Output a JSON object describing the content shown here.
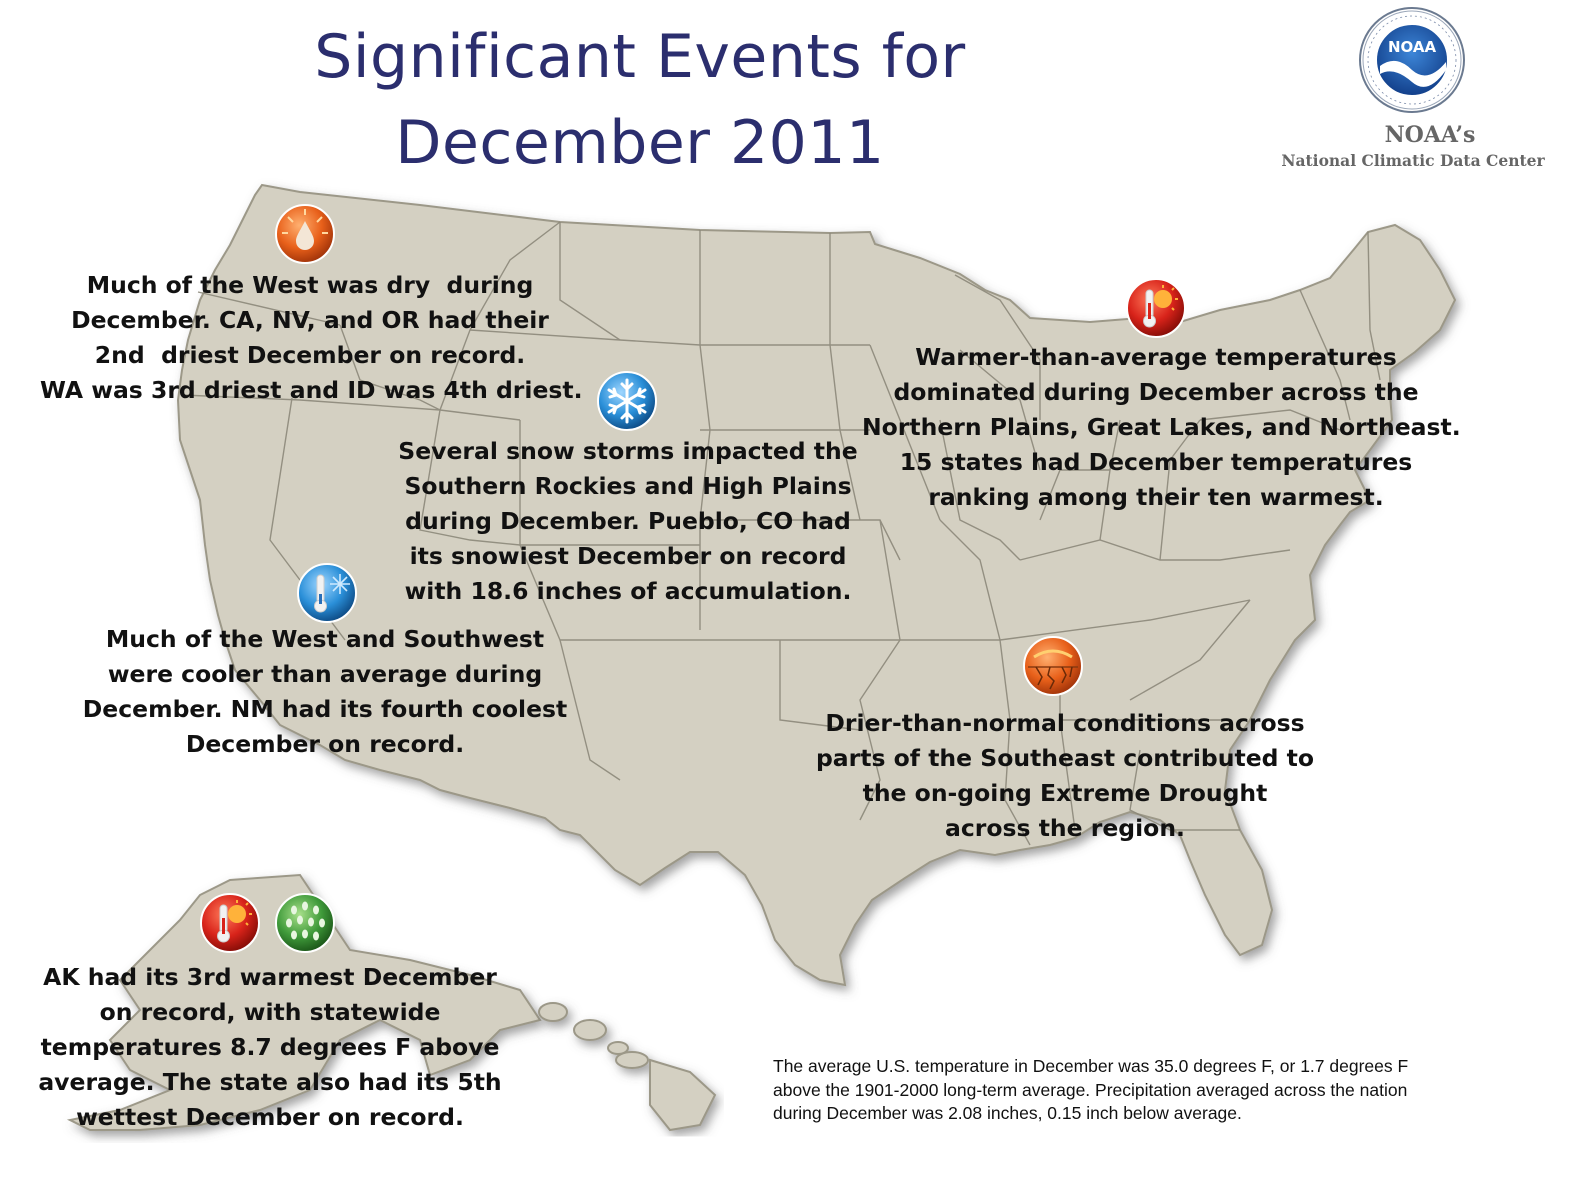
{
  "title": {
    "line1": "Significant Events for",
    "line2": "December 2011"
  },
  "logo": {
    "label": "NOAA",
    "ring_text": "NATIONAL OCEANIC AND ATMOSPHERIC ADMINISTRATION · U.S. DEPARTMENT OF COMMERCE",
    "name": "NOAA’s",
    "center": "National Climatic Data Center"
  },
  "callouts": {
    "west_dry": {
      "icon": "dry-drop-icon",
      "lines": [
        "Much of the West was dry  during",
        "December. CA, NV, and OR had their",
        "2nd  driest December on record.",
        "WA was 3rd driest and ID was 4th driest."
      ]
    },
    "snow": {
      "icon": "snowflake-icon",
      "lines": [
        "Several snow storms impacted the",
        "Southern Rockies and High Plains",
        "during December. Pueblo, CO had",
        "its snowiest December on record",
        "with 18.6 inches of accumulation."
      ]
    },
    "warm_northeast": {
      "icon": "warm-thermometer-icon",
      "lines": [
        "Warmer-than-average temperatures",
        "dominated during December across the",
        "Northern Plains, Great Lakes, and Northeast.",
        "15 states had December temperatures",
        "ranking among their ten warmest."
      ]
    },
    "cool_west": {
      "icon": "cool-thermometer-icon",
      "lines": [
        "Much of the West and Southwest",
        "were cooler than average during",
        "December. NM had its fourth coolest",
        "December on record."
      ]
    },
    "drought_southeast": {
      "icon": "drought-icon",
      "lines": [
        "Drier-than-normal conditions across",
        "parts of the Southeast contributed to",
        "the on-going Extreme Drought",
        "across the region."
      ]
    },
    "alaska": {
      "icons": [
        "warm-thermometer-icon",
        "rain-drops-icon"
      ],
      "lines": [
        "AK had its 3rd warmest December",
        "on record, with statewide",
        "temperatures 8.7 degrees F above",
        "average. The state also had its 5th",
        "wettest December on record."
      ]
    }
  },
  "summary_note": {
    "lines": [
      "The average U.S. temperature in December was 35.0 degrees F, or 1.7 degrees F",
      "above the 1901-2000 long-term average. Precipitation averaged across the nation",
      "during December was 2.08 inches, 0.15 inch below average."
    ]
  },
  "colors": {
    "title": "#2b2e6e",
    "land": "#d4d0c2",
    "land_border": "#9c9888",
    "state_lines": "#8c887a",
    "noaa_blue": "#1a4f9c",
    "warm_icon": "#d8231a",
    "dry_icon": "#e8601a",
    "cool_icon": "#2a8fd8",
    "snow_icon": "#3a9de0",
    "wet_icon": "#3f9a3a"
  }
}
